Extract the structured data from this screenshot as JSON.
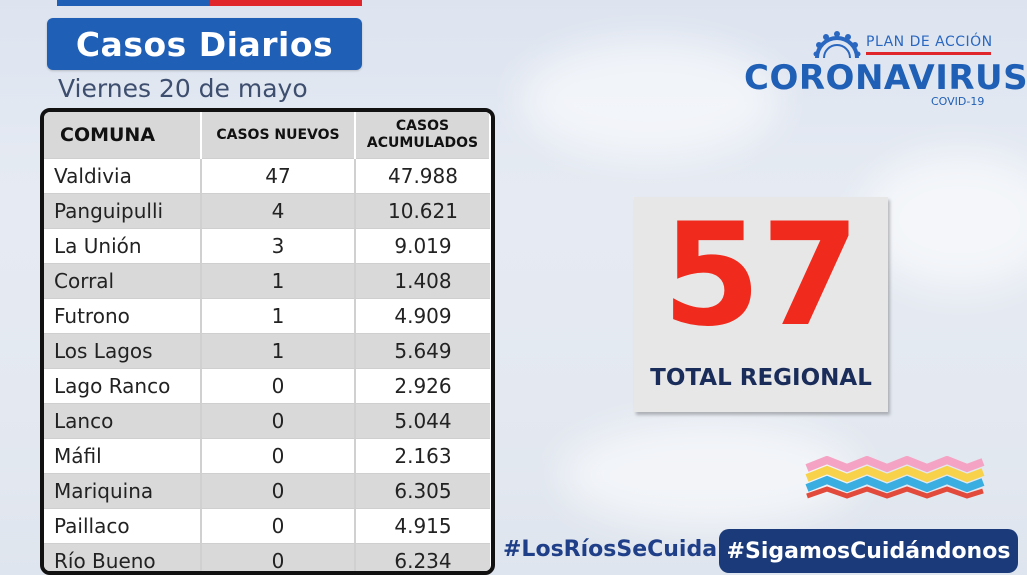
{
  "header": {
    "title": "Casos Diarios",
    "date": "Viernes 20 de mayo"
  },
  "table": {
    "columns": [
      "COMUNA",
      "CASOS NUEVOS",
      "CASOS",
      "ACUMULADOS"
    ],
    "rows": [
      {
        "comuna": "Valdivia",
        "nuevos": "47",
        "acumulados": "47.988"
      },
      {
        "comuna": "Panguipulli",
        "nuevos": "4",
        "acumulados": "10.621"
      },
      {
        "comuna": "La Unión",
        "nuevos": "3",
        "acumulados": "9.019"
      },
      {
        "comuna": "Corral",
        "nuevos": "1",
        "acumulados": "1.408"
      },
      {
        "comuna": "Futrono",
        "nuevos": "1",
        "acumulados": "4.909"
      },
      {
        "comuna": "Los Lagos",
        "nuevos": "1",
        "acumulados": "5.649"
      },
      {
        "comuna": "Lago Ranco",
        "nuevos": "0",
        "acumulados": "2.926"
      },
      {
        "comuna": "Lanco",
        "nuevos": "0",
        "acumulados": "5.044"
      },
      {
        "comuna": "Máfil",
        "nuevos": "0",
        "acumulados": "2.163"
      },
      {
        "comuna": "Mariquina",
        "nuevos": "0",
        "acumulados": "6.305"
      },
      {
        "comuna": "Paillaco",
        "nuevos": "0",
        "acumulados": "4.915"
      },
      {
        "comuna": "Río Bueno",
        "nuevos": "0",
        "acumulados": "6.234"
      }
    ]
  },
  "logo": {
    "line1": "PLAN DE ACCIÓN",
    "line2": "CORONAVIRUS",
    "line3": "COVID-19",
    "icon": "sun-virus-icon"
  },
  "total": {
    "value": "57",
    "label": "TOTAL REGIONAL"
  },
  "hashtags": {
    "left": "#LosRíosSeCuida",
    "right": "#SigamosCuidándonos"
  },
  "colors": {
    "brand_blue": "#1f5fb5",
    "accent_red": "#e0262a",
    "total_red": "#f02a1c",
    "navy": "#1b3a7a"
  }
}
